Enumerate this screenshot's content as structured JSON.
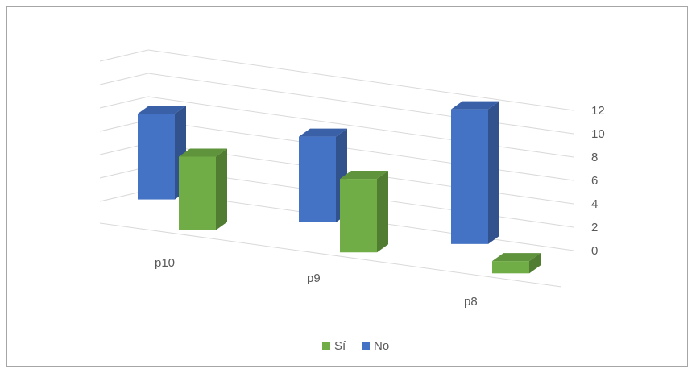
{
  "chart_data": {
    "type": "bar",
    "style": "3d-clustered-column",
    "categories": [
      "p10",
      "p9",
      "p8"
    ],
    "series": [
      {
        "name": "No",
        "values": [
          7,
          7,
          11
        ],
        "color": "#4472c4"
      },
      {
        "name": "Sí",
        "values": [
          6,
          6,
          1
        ],
        "color": "#70ad47"
      }
    ],
    "title": "",
    "xlabel": "",
    "ylabel": "",
    "ylim": [
      0,
      12
    ],
    "yticks": [
      0,
      2,
      4,
      6,
      8,
      10,
      12
    ],
    "y_axis_side": "right",
    "grid": true,
    "legend": {
      "position": "bottom",
      "entries": [
        {
          "label": "Sí",
          "color": "#70ad47"
        },
        {
          "label": "No",
          "color": "#4472c4"
        }
      ]
    }
  }
}
